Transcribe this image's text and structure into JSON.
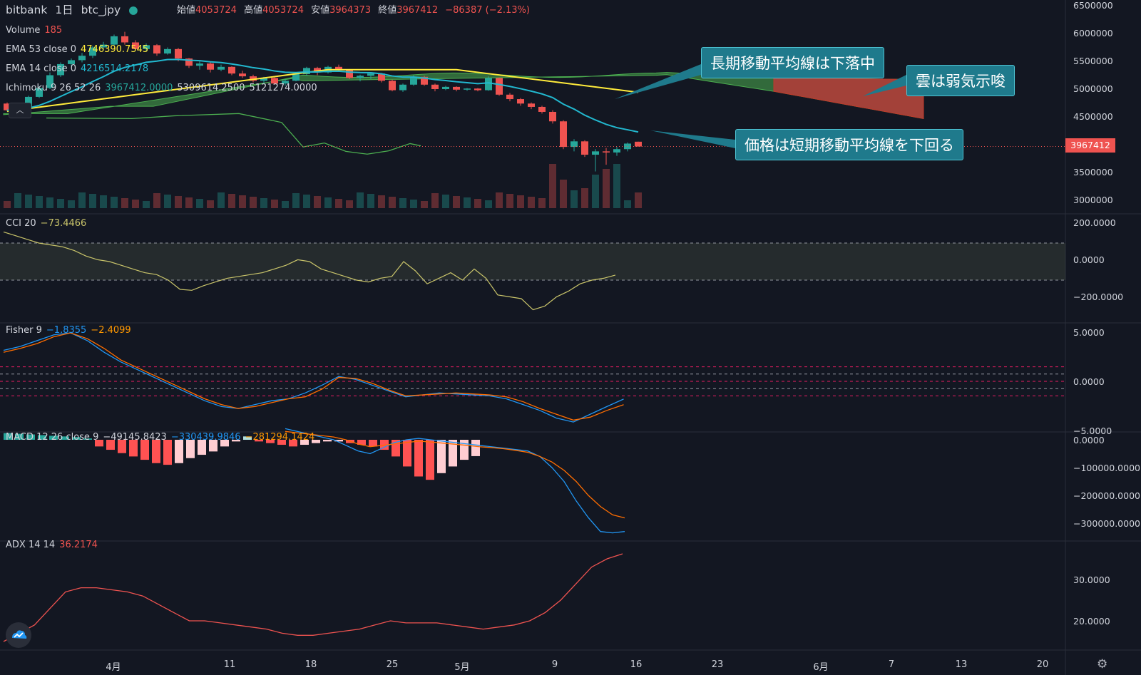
{
  "header": {
    "exchange": "bitbank",
    "interval": "1日",
    "symbol": "btc_jpy",
    "open_label": "始値",
    "open_value": "4053724",
    "high_label": "高値",
    "high_value": "4053724",
    "low_label": "安値",
    "low_value": "3964373",
    "close_label": "終値",
    "close_value": "3967412",
    "change": "−86387 (−2.13%)"
  },
  "indicators": {
    "volume": {
      "name": "Volume",
      "value": "185"
    },
    "ema53": {
      "name": "EMA 53 close 0",
      "value": "4746390.7545"
    },
    "ema14": {
      "name": "EMA 14 close 0",
      "value": "4216514.2178"
    },
    "ichimoku": {
      "name": "Ichimoku 9 26 52 26",
      "v1": "3967412.0000",
      "v2": "5309614.2500",
      "v3": "5121274.0000"
    },
    "cci": {
      "name": "CCI 20",
      "value": "−73.4466"
    },
    "fisher": {
      "name": "Fisher 9",
      "v1": "−1.8355",
      "v2": "−2.4099"
    },
    "macd": {
      "name": "MACD 12 26 close 9",
      "v1": "−49145.8423",
      "v2": "−330439.9846",
      "v3": "−281294.1424"
    },
    "adx": {
      "name": "ADX 14 14",
      "value": "36.2174"
    }
  },
  "price_axis": [
    "6500000",
    "6000000",
    "5500000",
    "5000000",
    "4500000",
    "3500000",
    "3000000"
  ],
  "current_price": "3967412",
  "cci_axis": [
    "200.0000",
    "0.0000",
    "−200.0000"
  ],
  "fisher_axis": [
    "5.0000",
    "0.0000",
    "−5.0000"
  ],
  "macd_axis": [
    "0.0000",
    "−100000.0000",
    "−200000.0000",
    "−300000.0000"
  ],
  "adx_axis": [
    "30.0000",
    "20.0000"
  ],
  "x_axis": [
    "4月",
    "11",
    "18",
    "25",
    "5月",
    "9",
    "16",
    "23",
    "6月",
    "7",
    "13",
    "20"
  ],
  "callouts": {
    "long_ma": "長期移動平均線は下落中",
    "cloud": "雲は弱気示唆",
    "price_below": "価格は短期移動平均線を下回る"
  },
  "colors": {
    "up": "#26a69a",
    "down": "#ef5350",
    "ema53": "#ffeb3b",
    "ema14": "#22b8cf",
    "background": "#131722"
  },
  "chart_data": {
    "type": "candlestick",
    "candles": [
      [
        4740000,
        4760000,
        4600000,
        4620000
      ],
      [
        4620000,
        4700000,
        4580000,
        4680000
      ],
      [
        4680000,
        4880000,
        4660000,
        4860000
      ],
      [
        4860000,
        5050000,
        4840000,
        5020000
      ],
      [
        5020000,
        5300000,
        5000000,
        5250000
      ],
      [
        5250000,
        5480000,
        5220000,
        5450000
      ],
      [
        5450000,
        5550000,
        5420000,
        5520000
      ],
      [
        5520000,
        5650000,
        5480000,
        5600000
      ],
      [
        5600000,
        5780000,
        5560000,
        5750000
      ],
      [
        5750000,
        5850000,
        5700000,
        5800000
      ],
      [
        5800000,
        5980000,
        5780000,
        5950000
      ],
      [
        5950000,
        6030000,
        5800000,
        5840000
      ],
      [
        5840000,
        5880000,
        5700000,
        5720000
      ],
      [
        5720000,
        5820000,
        5680000,
        5790000
      ],
      [
        5790000,
        5810000,
        5600000,
        5640000
      ],
      [
        5640000,
        5750000,
        5620000,
        5720000
      ],
      [
        5720000,
        5740000,
        5500000,
        5550000
      ],
      [
        5550000,
        5560000,
        5380000,
        5420000
      ],
      [
        5420000,
        5500000,
        5350000,
        5460000
      ],
      [
        5460000,
        5480000,
        5300000,
        5350000
      ],
      [
        5350000,
        5440000,
        5320000,
        5400000
      ],
      [
        5400000,
        5410000,
        5250000,
        5280000
      ],
      [
        5280000,
        5330000,
        5200000,
        5230000
      ],
      [
        5230000,
        5260000,
        5120000,
        5150000
      ],
      [
        5150000,
        5220000,
        5100000,
        5200000
      ],
      [
        5200000,
        5210000,
        5080000,
        5100000
      ],
      [
        5100000,
        5180000,
        5060000,
        5150000
      ],
      [
        5150000,
        5290000,
        5140000,
        5270000
      ],
      [
        5270000,
        5400000,
        5240000,
        5380000
      ],
      [
        5380000,
        5400000,
        5250000,
        5300000
      ],
      [
        5300000,
        5420000,
        5280000,
        5400000
      ],
      [
        5400000,
        5440000,
        5320000,
        5340000
      ],
      [
        5340000,
        5360000,
        5180000,
        5200000
      ],
      [
        5200000,
        5260000,
        5140000,
        5240000
      ],
      [
        5240000,
        5300000,
        5180000,
        5280000
      ],
      [
        5280000,
        5290000,
        5120000,
        5150000
      ],
      [
        5150000,
        5170000,
        4960000,
        4980000
      ],
      [
        4980000,
        5100000,
        4950000,
        5080000
      ],
      [
        5080000,
        5250000,
        5060000,
        5220000
      ],
      [
        5220000,
        5240000,
        5060000,
        5080000
      ],
      [
        5080000,
        5100000,
        4960000,
        5000000
      ],
      [
        5000000,
        5060000,
        4980000,
        5040000
      ],
      [
        5040000,
        5050000,
        4960000,
        4990000
      ],
      [
        4990000,
        5020000,
        4970000,
        5010000
      ],
      [
        5010000,
        5020000,
        4960000,
        4980000
      ],
      [
        4980000,
        5230000,
        4970000,
        5200000
      ],
      [
        5200000,
        5210000,
        4880000,
        4900000
      ],
      [
        4900000,
        4930000,
        4780000,
        4820000
      ],
      [
        4820000,
        4840000,
        4700000,
        4740000
      ],
      [
        4740000,
        4760000,
        4640000,
        4680000
      ],
      [
        4680000,
        4700000,
        4560000,
        4590000
      ],
      [
        4590000,
        4620000,
        4380000,
        4420000
      ],
      [
        4420000,
        4440000,
        3920000,
        3960000
      ],
      [
        3960000,
        4100000,
        3880000,
        4060000
      ],
      [
        4060000,
        4080000,
        3780000,
        3820000
      ],
      [
        3820000,
        3920000,
        3520000,
        3880000
      ],
      [
        3880000,
        3940000,
        3640000,
        3860000
      ],
      [
        3860000,
        3960000,
        3800000,
        3920000
      ],
      [
        3920000,
        4040000,
        3880000,
        4020000
      ],
      [
        4053724,
        4053724,
        3964373,
        3967412
      ]
    ]
  }
}
